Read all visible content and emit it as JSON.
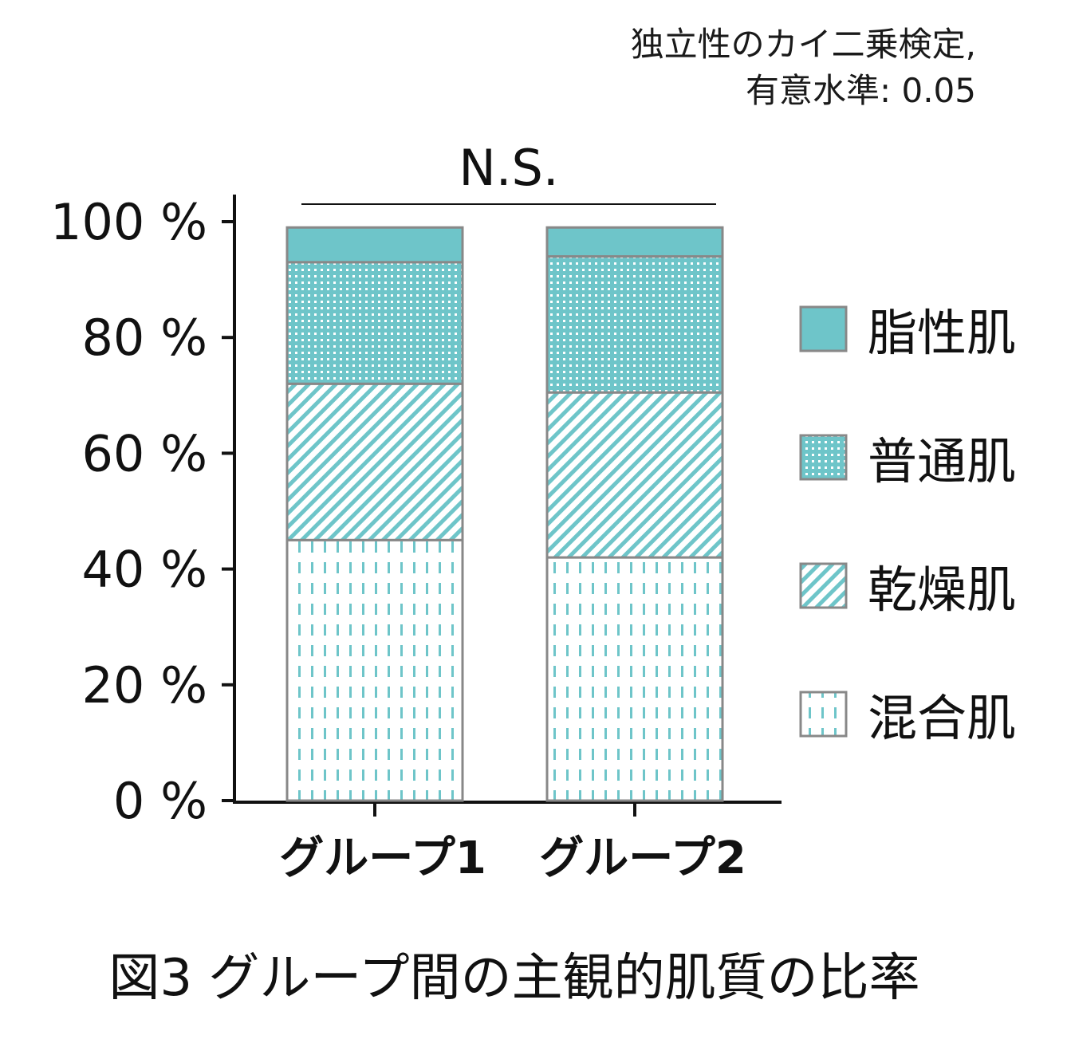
{
  "notes": {
    "line1": "独立性のカイ二乗検定,",
    "line2": "有意水準: 0.05"
  },
  "caption": "図3 グループ間の主観的肌質の比率",
  "chart_data": {
    "type": "bar",
    "stacked": true,
    "significance_label": "N.S.",
    "categories": [
      "グループ1",
      "グループ2"
    ],
    "ylim": [
      0,
      100
    ],
    "yticks": [
      0,
      20,
      40,
      60,
      80,
      100
    ],
    "ytick_labels": [
      "0 %",
      "20 %",
      "40 %",
      "60 %",
      "80 %",
      "100 %"
    ],
    "series": [
      {
        "name": "混合肌",
        "values": [
          45,
          42
        ],
        "pattern": "dashes"
      },
      {
        "name": "乾燥肌",
        "values": [
          27,
          28.5
        ],
        "pattern": "diagonal"
      },
      {
        "name": "普通肌",
        "values": [
          21,
          23.5
        ],
        "pattern": "dots"
      },
      {
        "name": "脂性肌",
        "values": [
          6,
          5
        ],
        "pattern": "solid"
      }
    ],
    "legend_order": [
      "脂性肌",
      "普通肌",
      "乾燥肌",
      "混合肌"
    ],
    "legend_position": "right",
    "colors": {
      "teal": "#6ec5c9",
      "outline": "#888888",
      "axis": "#111111"
    }
  }
}
